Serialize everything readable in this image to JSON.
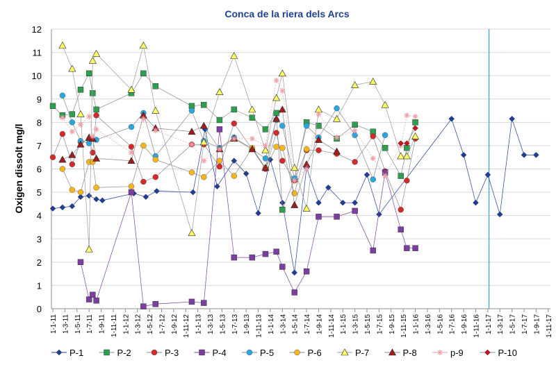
{
  "chart_data": {
    "type": "line",
    "title": "Conca de la riera dels Arcs",
    "ylabel": "Oxigen dissolt   mg/l",
    "xlabel": "",
    "ylim": [
      0,
      12
    ],
    "yticks": [
      "0",
      "1",
      "2",
      "3",
      "4",
      "5",
      "6",
      "7",
      "8",
      "9",
      "10",
      "11",
      "12"
    ],
    "grid": "horizontal",
    "legend_position": "bottom",
    "categories": [
      "1-1-11",
      "1-3-11",
      "1-5-11",
      "1-7-11",
      "1-9-11",
      "1-11-11",
      "1-1-12",
      "1-3-12",
      "1-5-12",
      "1-7-12",
      "1-9-12",
      "1-11-12",
      "1-1-13",
      "1-3-13",
      "1-5-13",
      "1-7-13",
      "1-9-13",
      "1-11-13",
      "1-1-14",
      "1-3-14",
      "1-5-14",
      "1-7-14",
      "1-9-14",
      "1-11-14",
      "1-1-15",
      "1-3-15",
      "1-5-15",
      "1-7-15",
      "1-9-15",
      "1-11-15",
      "1-1-16",
      "1-3-16",
      "1-5-16",
      "1-7-16",
      "1-9-16",
      "1-11-16",
      "1-1-17",
      "1-3-17",
      "1-5-17",
      "1-7-17",
      "1-9-17",
      "1-11-17"
    ],
    "vline_x": 36.1,
    "series": [
      {
        "name": "P-1",
        "color": "#1f3d99",
        "stroke": "#1f3d99",
        "marker": "diamond",
        "x": [
          0,
          0.8,
          1.6,
          2.3,
          3.0,
          3.6,
          4.1,
          6.7,
          7.7,
          8.6,
          11.6,
          12.6,
          13.6,
          15.0,
          16.0,
          17.0,
          18.0,
          19.0,
          20.0,
          21.0,
          22.0,
          22.8,
          24.0,
          25.0,
          26.0,
          27.0,
          33.0,
          34.0,
          35.0,
          36.0,
          37.0,
          38.0,
          39.0,
          40.0
        ],
        "values": [
          4.3,
          4.35,
          4.4,
          4.8,
          4.85,
          4.7,
          4.65,
          4.95,
          4.8,
          5.05,
          5.0,
          7.7,
          5.25,
          6.35,
          5.8,
          4.1,
          6.4,
          4.55,
          1.55,
          6.05,
          4.55,
          5.2,
          4.55,
          4.55,
          5.75,
          4.05,
          8.15,
          6.6,
          4.55,
          5.75,
          4.05,
          8.15,
          6.6,
          6.6
        ]
      },
      {
        "name": "P-2",
        "color": "#2e9e4f",
        "stroke": "#8a8a8a",
        "marker": "square",
        "x": [
          0,
          0.8,
          1.6,
          2.3,
          3.0,
          3.3,
          3.6,
          6.5,
          7.5,
          8.5,
          11.5,
          12.5,
          13.8,
          15.0,
          16.5,
          17.6,
          18.5,
          19.0,
          20.0,
          21.0,
          22.0,
          23.5,
          25.0,
          26.5,
          27.5,
          28.8,
          29.3,
          30.0
        ],
        "values": [
          8.7,
          8.3,
          8.35,
          9.4,
          10.1,
          9.25,
          8.55,
          9.25,
          10.1,
          9.55,
          8.7,
          8.75,
          8.1,
          8.55,
          8.2,
          7.7,
          8.4,
          4.25,
          5.55,
          8.0,
          7.85,
          7.3,
          7.9,
          7.6,
          6.9,
          5.7,
          6.9,
          8.0
        ]
      },
      {
        "name": "P-3",
        "color": "#d42a2a",
        "stroke": "#8a8a8a",
        "marker": "circle",
        "x": [
          0,
          0.8,
          1.6,
          2.3,
          3.0,
          3.3,
          3.6,
          6.5,
          7.5,
          8.5,
          11.5,
          12.5,
          13.8,
          15.0,
          16.5,
          17.6,
          18.5,
          19.0,
          20.0,
          21.0,
          22.0,
          23.5,
          25.0,
          26.5,
          27.5,
          28.8,
          29.3,
          30.0
        ],
        "values": [
          6.5,
          7.5,
          6.2,
          7.15,
          7.25,
          6.7,
          8.3,
          6.95,
          5.45,
          5.65,
          7.05,
          7.05,
          6.1,
          7.95,
          6.85,
          6.0,
          7.55,
          6.35,
          5.5,
          6.8,
          6.8,
          6.65,
          6.3,
          7.4,
          5.9,
          4.25,
          5.5,
          7.3
        ]
      },
      {
        "name": "P-4",
        "color": "#7b3fa0",
        "stroke": "#7b3fa0",
        "marker": "square",
        "x": [
          2.3,
          3.0,
          3.3,
          3.6,
          6.5,
          7.5,
          8.5,
          11.5,
          12.5,
          13.8,
          15.0,
          16.5,
          17.6,
          18.5,
          19.0,
          20.0,
          21.0,
          22.0,
          23.5,
          25.0,
          26.5,
          27.5,
          28.8,
          29.3,
          30.0
        ],
        "values": [
          2.0,
          0.4,
          0.6,
          0.35,
          5.0,
          0.1,
          0.2,
          0.3,
          0.25,
          7.7,
          2.2,
          2.2,
          2.35,
          2.45,
          1.8,
          0.7,
          1.6,
          3.95,
          3.95,
          4.2,
          2.5,
          5.85,
          3.4,
          2.6,
          2.6
        ]
      },
      {
        "name": "P-5",
        "color": "#2ba6de",
        "stroke": "#8a8a8a",
        "marker": "circle",
        "x": [
          0.8,
          1.6,
          2.3,
          3.0,
          3.6,
          6.5,
          7.5,
          8.5,
          11.5,
          12.5,
          13.8,
          15.0,
          16.5,
          17.6,
          18.5,
          19.0,
          20.0,
          21.0,
          22.0,
          23.5,
          25.0,
          26.5,
          27.5
        ],
        "values": [
          9.15,
          8.0,
          7.2,
          7.1,
          7.25,
          7.8,
          8.4,
          6.55,
          8.5,
          7.2,
          6.9,
          7.35,
          6.85,
          6.45,
          8.1,
          7.85,
          5.6,
          7.85,
          7.35,
          8.6,
          7.45,
          5.55,
          7.45
        ]
      },
      {
        "name": "P-6",
        "color": "#f5b51e",
        "stroke": "#8a8a8a",
        "marker": "circle",
        "x": [
          0.8,
          1.6,
          2.3,
          3.0,
          3.3,
          3.6,
          6.5,
          7.5,
          8.5,
          11.5,
          12.5,
          13.8,
          15.0,
          16.5,
          17.6,
          18.5,
          19.0,
          20.0,
          21.0
        ],
        "values": [
          6.0,
          5.1,
          5.0,
          6.3,
          6.3,
          5.2,
          5.25,
          7.0,
          6.4,
          5.85,
          5.65,
          6.35,
          5.7,
          6.9,
          6.05,
          6.95,
          6.9,
          4.95,
          6.85
        ]
      },
      {
        "name": "P-7",
        "color": "#ffff66",
        "stroke": "#9a9a9a",
        "marker": "triangle",
        "x": [
          0.8,
          1.6,
          2.3,
          3.0,
          3.3,
          3.6,
          6.5,
          7.5,
          8.5,
          11.5,
          12.5,
          13.8,
          15.0,
          16.5,
          17.6,
          18.5,
          19.0,
          20.0,
          21.0,
          22.0,
          23.5,
          25.0,
          26.5,
          27.5,
          28.8,
          29.3,
          30.0
        ],
        "values": [
          11.3,
          10.3,
          8.35,
          2.55,
          10.65,
          10.95,
          9.4,
          11.3,
          8.5,
          3.25,
          7.15,
          9.3,
          10.85,
          8.55,
          6.8,
          9.05,
          10.1,
          6.05,
          4.3,
          8.55,
          8.15,
          9.6,
          9.75,
          8.75,
          6.55,
          6.55,
          7.4
        ]
      },
      {
        "name": "P-8",
        "color": "#a01e1e",
        "stroke": "#8a8a8a",
        "marker": "triangle",
        "x": [
          0.8,
          1.6,
          2.3,
          3.0,
          3.3,
          3.6,
          6.5,
          7.5,
          8.5,
          11.5,
          12.5,
          13.8,
          15.0,
          16.5,
          17.6,
          18.5,
          19.0,
          20.0,
          21.0,
          22.0,
          23.5
        ],
        "values": [
          6.4,
          6.6,
          7.05,
          7.35,
          7.3,
          6.45,
          6.35,
          8.3,
          7.75,
          7.6,
          7.85,
          6.85,
          7.3,
          6.85,
          6.05,
          8.15,
          8.55,
          4.45,
          6.2,
          7.25,
          6.75
        ]
      },
      {
        "name": "p-9",
        "color": "#f0a0a8",
        "stroke": "#f0a0a8",
        "marker": "star",
        "x": [
          0.8,
          1.6,
          2.3,
          3.0,
          3.3,
          3.6,
          6.5,
          7.5,
          8.5,
          11.5,
          12.5,
          13.8,
          15.0,
          16.5,
          17.6,
          18.5,
          19.0,
          20.0,
          21.0,
          22.0,
          23.5,
          25.0,
          26.5,
          27.5,
          28.8,
          29.3,
          30.0
        ],
        "values": [
          8.2,
          7.6,
          7.9,
          8.25,
          7.4,
          7.7,
          6.7,
          8.15,
          7.65,
          7.05,
          6.35,
          6.85,
          7.3,
          7.3,
          7.0,
          9.8,
          9.35,
          5.5,
          6.0,
          8.35,
          7.35,
          7.65,
          6.45,
          5.7,
          7.0,
          8.3,
          8.25
        ]
      },
      {
        "name": "P-10",
        "color": "#c8141e",
        "stroke": "#8a8a8a",
        "marker": "diamond",
        "x": [
          28.8,
          29.3,
          30.0
        ],
        "values": [
          7.1,
          7.1,
          7.75
        ]
      }
    ]
  }
}
